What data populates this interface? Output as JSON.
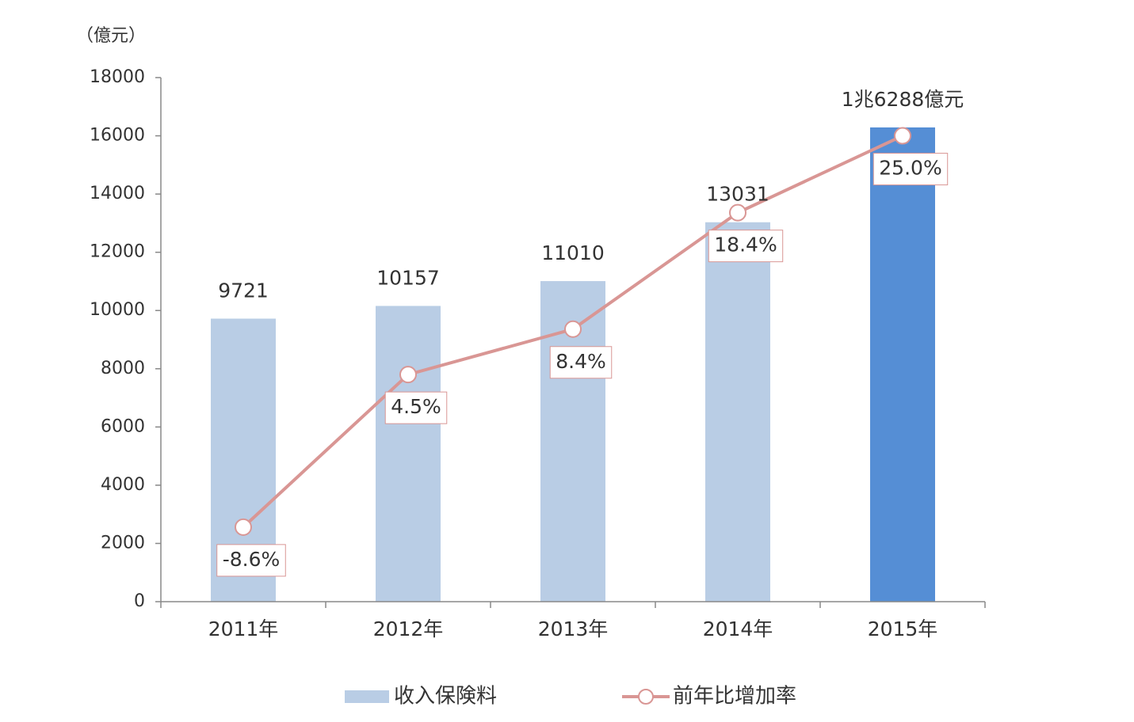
{
  "chart_data": {
    "type": "bar",
    "ylabel": "（億元）",
    "categories": [
      "2011年",
      "2012年",
      "2013年",
      "2014年",
      "2015年"
    ],
    "series": [
      {
        "name": "收入保険料",
        "type": "bar",
        "color": "#b9cde5",
        "colors": [
          "#b9cde5",
          "#b9cde5",
          "#b9cde5",
          "#b9cde5",
          "#558ed5"
        ],
        "values": [
          9721,
          10157,
          11010,
          13031,
          16288
        ],
        "value_labels": [
          "9721",
          "10157",
          "11010",
          "13031",
          "1兆6288億元"
        ]
      },
      {
        "name": "前年比增加率",
        "type": "line",
        "axis": "y2",
        "color": "#d99694",
        "values": [
          -8.6,
          4.5,
          8.4,
          18.4,
          25.0
        ],
        "value_labels": [
          "-8.6%",
          "4.5%",
          "8.4%",
          "18.4%",
          "25.0%"
        ]
      }
    ],
    "ylim": [
      0,
      18000
    ],
    "yticks": [
      0,
      2000,
      4000,
      6000,
      8000,
      10000,
      12000,
      14000,
      16000,
      18000
    ],
    "y2lim": [
      -15,
      30
    ],
    "grid": false
  }
}
